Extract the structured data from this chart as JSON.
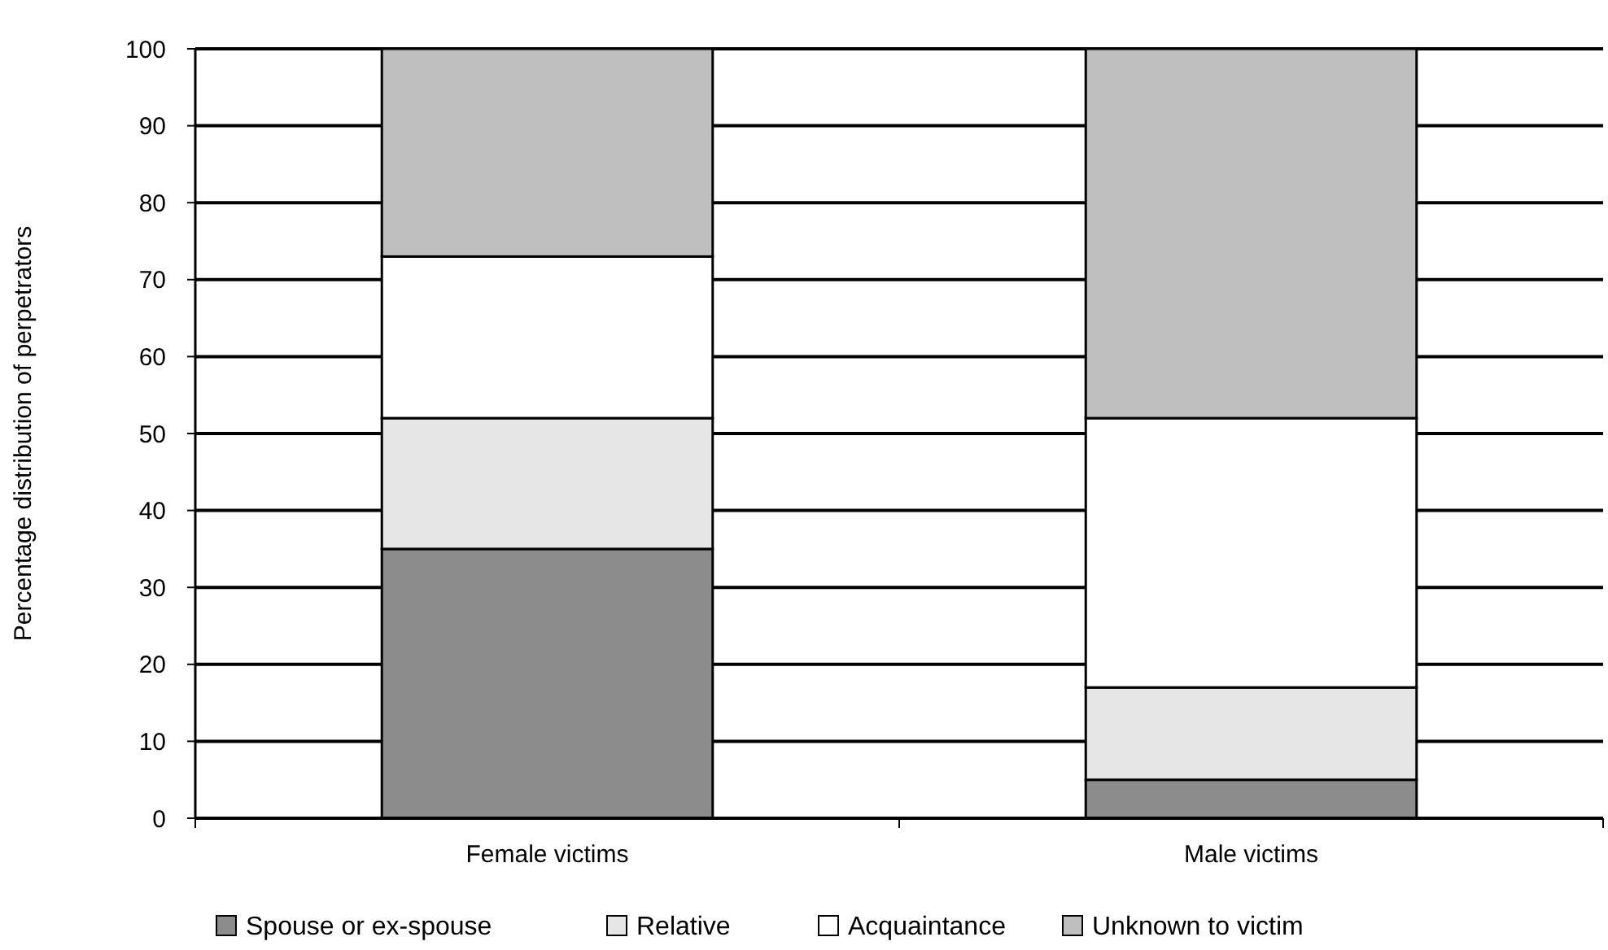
{
  "chart_data": {
    "type": "bar",
    "stacked": true,
    "ylabel": "Percentage distribution of perpetrators",
    "categories": [
      "Female victims",
      "Male victims"
    ],
    "series": [
      {
        "name": "Spouse or ex-spouse",
        "color": "#8c8c8c",
        "values": [
          35,
          5
        ]
      },
      {
        "name": "Relative",
        "color": "#e6e6e6",
        "values": [
          17,
          12
        ]
      },
      {
        "name": "Acquaintance",
        "color": "#ffffff",
        "values": [
          21,
          35
        ]
      },
      {
        "name": "Unknown to victim",
        "color": "#bfbfbf",
        "values": [
          27,
          48
        ]
      }
    ],
    "ylim": [
      0,
      100
    ],
    "yticks": [
      0,
      10,
      20,
      30,
      40,
      50,
      60,
      70,
      80,
      90,
      100
    ],
    "grid": "y",
    "legend": "bottom"
  }
}
